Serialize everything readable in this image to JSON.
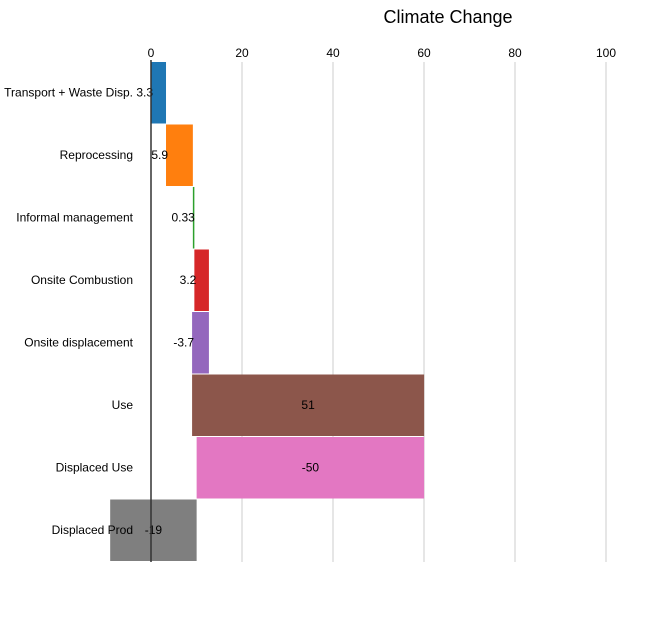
{
  "chart_data": {
    "type": "waterfall",
    "title": "Climate Change",
    "categories": [
      "Transport + Waste Disp.",
      "Reprocessing",
      "Informal management",
      "Onsite Combustion",
      "Onsite displacement",
      "Use",
      "Displaced Use",
      "Displaced Prod"
    ],
    "values": [
      3.3,
      5.9,
      0.33,
      3.2,
      -3.7,
      51,
      -50,
      -19
    ],
    "colors": [
      "#1f77b4",
      "#ff7f0e",
      "#2ca02c",
      "#d62728",
      "#9467bd",
      "#8c564b",
      "#e377c2",
      "#7f7f7f"
    ],
    "xlim": [
      -9,
      100
    ],
    "xticks": [
      0,
      20,
      40,
      60,
      80,
      100
    ],
    "grid": true
  }
}
